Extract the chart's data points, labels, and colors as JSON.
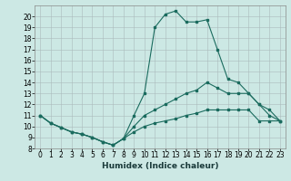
{
  "title": "",
  "xlabel": "Humidex (Indice chaleur)",
  "ylabel": "",
  "bg_color": "#cce8e4",
  "line_color": "#1a6b5e",
  "xlim_min": -0.5,
  "xlim_max": 23.5,
  "ylim_min": 8,
  "ylim_max": 21,
  "yticks": [
    8,
    9,
    10,
    11,
    12,
    13,
    14,
    15,
    16,
    17,
    18,
    19,
    20
  ],
  "xticks": [
    0,
    1,
    2,
    3,
    4,
    5,
    6,
    7,
    8,
    9,
    10,
    11,
    12,
    13,
    14,
    15,
    16,
    17,
    18,
    19,
    20,
    21,
    22,
    23
  ],
  "line1_x": [
    0,
    1,
    2,
    3,
    4,
    5,
    6,
    7,
    8,
    9,
    10,
    11,
    12,
    13,
    14,
    15,
    16,
    17,
    18,
    19,
    20,
    21,
    22,
    23
  ],
  "line1_y": [
    11.0,
    10.3,
    9.9,
    9.5,
    9.3,
    9.0,
    8.6,
    8.3,
    8.9,
    11.0,
    13.0,
    19.0,
    20.2,
    20.5,
    19.5,
    19.5,
    19.7,
    17.0,
    14.3,
    14.0,
    13.0,
    12.0,
    11.0,
    10.5
  ],
  "line2_x": [
    0,
    1,
    2,
    3,
    4,
    5,
    6,
    7,
    8,
    9,
    10,
    11,
    12,
    13,
    14,
    15,
    16,
    17,
    18,
    19,
    20,
    21,
    22,
    23
  ],
  "line2_y": [
    11.0,
    10.3,
    9.9,
    9.5,
    9.3,
    9.0,
    8.6,
    8.3,
    8.9,
    10.0,
    11.0,
    11.5,
    12.0,
    12.5,
    13.0,
    13.3,
    14.0,
    13.5,
    13.0,
    13.0,
    13.0,
    12.0,
    11.5,
    10.5
  ],
  "line3_x": [
    0,
    1,
    2,
    3,
    4,
    5,
    6,
    7,
    8,
    9,
    10,
    11,
    12,
    13,
    14,
    15,
    16,
    17,
    18,
    19,
    20,
    21,
    22,
    23
  ],
  "line3_y": [
    11.0,
    10.3,
    9.9,
    9.5,
    9.3,
    9.0,
    8.6,
    8.3,
    8.9,
    9.5,
    10.0,
    10.3,
    10.5,
    10.7,
    11.0,
    11.2,
    11.5,
    11.5,
    11.5,
    11.5,
    11.5,
    10.5,
    10.5,
    10.5
  ],
  "tick_fontsize": 5.5,
  "xlabel_fontsize": 6.5
}
